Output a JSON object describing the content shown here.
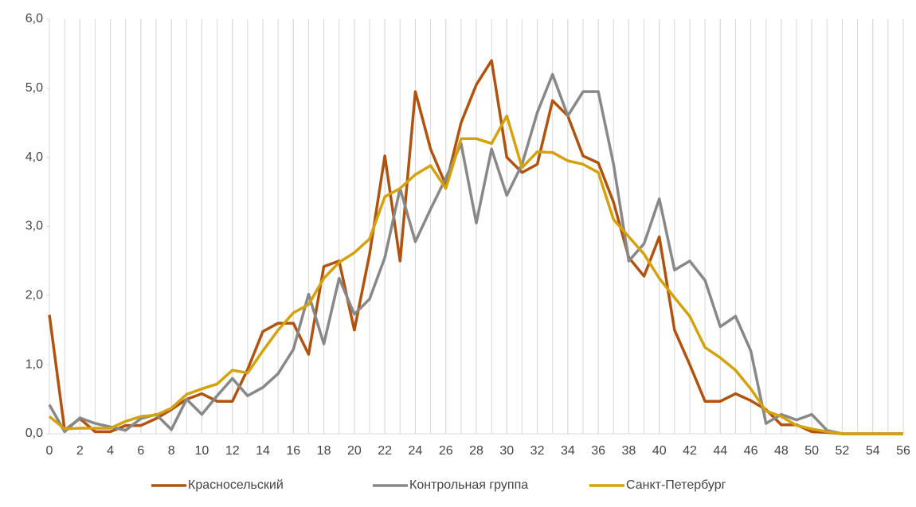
{
  "chart_data": {
    "type": "line",
    "x": [
      0,
      1,
      2,
      3,
      4,
      5,
      6,
      7,
      8,
      9,
      10,
      11,
      12,
      13,
      14,
      15,
      16,
      17,
      18,
      19,
      20,
      21,
      22,
      23,
      24,
      25,
      26,
      27,
      28,
      29,
      30,
      31,
      32,
      33,
      34,
      35,
      36,
      37,
      38,
      39,
      40,
      41,
      42,
      43,
      44,
      45,
      46,
      47,
      48,
      49,
      50,
      51,
      52,
      53,
      54,
      55,
      56
    ],
    "series": [
      {
        "name": "Красносельский",
        "color": "#b0530f",
        "values": [
          1.72,
          0.05,
          0.22,
          0.03,
          0.03,
          0.12,
          0.12,
          0.22,
          0.35,
          0.5,
          0.58,
          0.47,
          0.47,
          0.93,
          1.48,
          1.6,
          1.6,
          1.15,
          2.42,
          2.5,
          1.5,
          2.6,
          4.02,
          2.5,
          4.95,
          4.12,
          3.6,
          4.5,
          5.05,
          5.4,
          4.0,
          3.78,
          3.9,
          4.82,
          4.6,
          4.02,
          3.92,
          3.35,
          2.55,
          2.28,
          2.85,
          1.5,
          1.0,
          0.47,
          0.47,
          0.58,
          0.48,
          0.35,
          0.13,
          0.13,
          0.03,
          0.02,
          0,
          0,
          0,
          0,
          0
        ]
      },
      {
        "name": "Контрольная группа",
        "color": "#888888",
        "values": [
          0.42,
          0.03,
          0.23,
          0.15,
          0.1,
          0.05,
          0.22,
          0.28,
          0.06,
          0.5,
          0.28,
          0.55,
          0.8,
          0.55,
          0.67,
          0.87,
          1.22,
          2.02,
          1.3,
          2.25,
          1.73,
          1.95,
          2.55,
          3.55,
          2.78,
          3.25,
          3.7,
          4.2,
          3.05,
          4.12,
          3.45,
          3.9,
          4.65,
          5.2,
          4.6,
          4.95,
          4.95,
          3.9,
          2.5,
          2.75,
          3.4,
          2.37,
          2.5,
          2.22,
          1.55,
          1.7,
          1.2,
          0.15,
          0.28,
          0.2,
          0.28,
          0.05,
          0,
          0,
          0,
          0,
          0
        ]
      },
      {
        "name": "Санкт-Петербург",
        "color": "#d4a20c",
        "values": [
          0.25,
          0.07,
          0.08,
          0.08,
          0.08,
          0.18,
          0.25,
          0.27,
          0.37,
          0.57,
          0.65,
          0.72,
          0.92,
          0.88,
          1.2,
          1.5,
          1.75,
          1.87,
          2.25,
          2.48,
          2.62,
          2.82,
          3.43,
          3.55,
          3.75,
          3.88,
          3.55,
          4.27,
          4.27,
          4.2,
          4.6,
          3.85,
          4.08,
          4.07,
          3.95,
          3.9,
          3.78,
          3.1,
          2.85,
          2.6,
          2.25,
          1.97,
          1.7,
          1.25,
          1.1,
          0.92,
          0.65,
          0.33,
          0.25,
          0.12,
          0.07,
          0.03,
          0,
          0,
          0,
          0,
          0
        ]
      }
    ],
    "xlim": [
      0,
      56
    ],
    "xticks": [
      0,
      2,
      4,
      6,
      8,
      10,
      12,
      14,
      16,
      18,
      20,
      22,
      24,
      26,
      28,
      30,
      32,
      34,
      36,
      38,
      40,
      42,
      44,
      46,
      48,
      50,
      52,
      54,
      56
    ],
    "x_grid_step": 1,
    "ylim": [
      0,
      6
    ],
    "yticks": [
      {
        "value": 0,
        "label": "0,0"
      },
      {
        "value": 1,
        "label": "1,0"
      },
      {
        "value": 2,
        "label": "2,0"
      },
      {
        "value": 3,
        "label": "3,0"
      },
      {
        "value": 4,
        "label": "4,0"
      },
      {
        "value": 5,
        "label": "5,0"
      },
      {
        "value": 6,
        "label": "6,0"
      }
    ],
    "legend": "bottom"
  }
}
